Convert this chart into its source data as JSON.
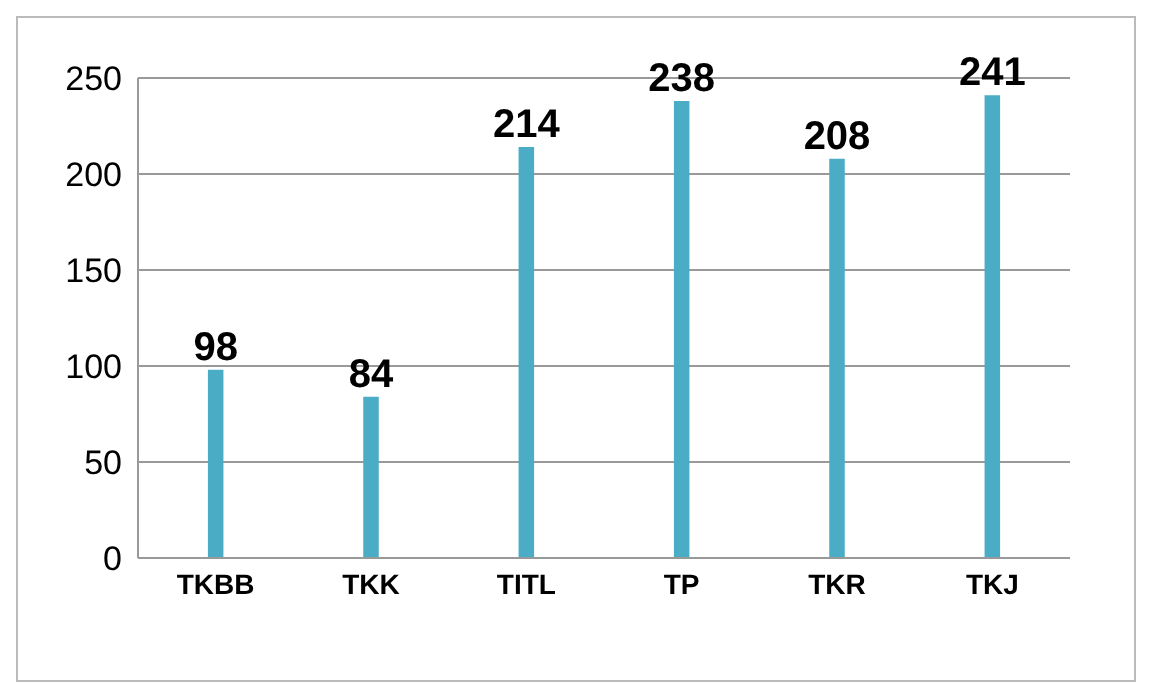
{
  "chart_data": {
    "type": "bar",
    "categories": [
      "TKBB",
      "TKK",
      "TITL",
      "TP",
      "TKR",
      "TKJ"
    ],
    "values": [
      98,
      84,
      214,
      238,
      208,
      241
    ],
    "color": "#4bacc6",
    "ylim": [
      0,
      250
    ],
    "yticks": [
      0,
      50,
      100,
      150,
      200,
      250
    ],
    "grid": "y",
    "data_labels": true
  }
}
